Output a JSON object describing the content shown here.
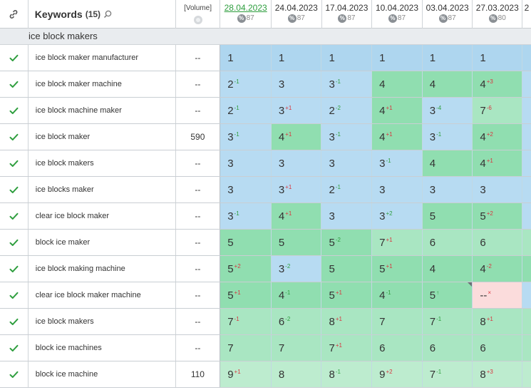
{
  "header": {
    "keywords_label": "Keywords",
    "keywords_count": "(15)",
    "volume_label": "[Volume]",
    "dates": [
      {
        "date": "28.04.2023",
        "score": "87"
      },
      {
        "date": "24.04.2023",
        "score": "87"
      },
      {
        "date": "17.04.2023",
        "score": "87"
      },
      {
        "date": "10.04.2023",
        "score": "87"
      },
      {
        "date": "03.04.2023",
        "score": "87"
      },
      {
        "date": "27.03.2023",
        "score": "80"
      },
      {
        "date": "2",
        "score": ""
      }
    ]
  },
  "group_title": "ice block makers",
  "colors": {
    "blue": "#aed6ef",
    "green": "#90deb0",
    "light_green": "#a9e6c2",
    "very_light_green": "#bdeccf",
    "pink": "#fbdcdc",
    "check": "#2e9e3e",
    "change_up": "#2e9e3e",
    "change_down": "#d9363e"
  },
  "rows": [
    {
      "keyword": "ice block maker manufacturer",
      "volume": "--",
      "cells": [
        {
          "pos": "1",
          "ch": "",
          "dir": "",
          "bg": "blue"
        },
        {
          "pos": "1",
          "ch": "",
          "dir": "",
          "bg": "blue"
        },
        {
          "pos": "1",
          "ch": "",
          "dir": "",
          "bg": "blue"
        },
        {
          "pos": "1",
          "ch": "",
          "dir": "",
          "bg": "blue"
        },
        {
          "pos": "1",
          "ch": "",
          "dir": "",
          "bg": "blue"
        },
        {
          "pos": "1",
          "ch": "",
          "dir": "",
          "bg": "blue"
        },
        {
          "pos": "",
          "ch": "",
          "dir": "",
          "bg": "blue"
        }
      ]
    },
    {
      "keyword": "ice block maker machine",
      "volume": "--",
      "cells": [
        {
          "pos": "2",
          "ch": "-1",
          "dir": "up",
          "bg": "blue2"
        },
        {
          "pos": "3",
          "ch": "",
          "dir": "",
          "bg": "blue2"
        },
        {
          "pos": "3",
          "ch": "-1",
          "dir": "up",
          "bg": "blue2"
        },
        {
          "pos": "4",
          "ch": "",
          "dir": "",
          "bg": "green"
        },
        {
          "pos": "4",
          "ch": "",
          "dir": "",
          "bg": "green"
        },
        {
          "pos": "4",
          "ch": "+3",
          "dir": "down",
          "bg": "green"
        },
        {
          "pos": "",
          "ch": "",
          "dir": "",
          "bg": "blue2"
        }
      ]
    },
    {
      "keyword": "ice block machine maker",
      "volume": "--",
      "cells": [
        {
          "pos": "2",
          "ch": "-1",
          "dir": "up",
          "bg": "blue2"
        },
        {
          "pos": "3",
          "ch": "+1",
          "dir": "down",
          "bg": "blue2"
        },
        {
          "pos": "2",
          "ch": "-2",
          "dir": "up",
          "bg": "blue2"
        },
        {
          "pos": "4",
          "ch": "+1",
          "dir": "down",
          "bg": "green"
        },
        {
          "pos": "3",
          "ch": "-4",
          "dir": "up",
          "bg": "blue2"
        },
        {
          "pos": "7",
          "ch": "-6",
          "dir": "down",
          "bg": "lgreen"
        },
        {
          "pos": "",
          "ch": "",
          "dir": "",
          "bg": "blue2"
        }
      ]
    },
    {
      "keyword": "ice block maker",
      "volume": "590",
      "cells": [
        {
          "pos": "3",
          "ch": "-1",
          "dir": "up",
          "bg": "blue2"
        },
        {
          "pos": "4",
          "ch": "+1",
          "dir": "down",
          "bg": "green"
        },
        {
          "pos": "3",
          "ch": "-1",
          "dir": "up",
          "bg": "blue2"
        },
        {
          "pos": "4",
          "ch": "+1",
          "dir": "down",
          "bg": "green"
        },
        {
          "pos": "3",
          "ch": "-1",
          "dir": "up",
          "bg": "blue2"
        },
        {
          "pos": "4",
          "ch": "+2",
          "dir": "down",
          "bg": "green"
        },
        {
          "pos": "",
          "ch": "",
          "dir": "",
          "bg": "blue2"
        }
      ]
    },
    {
      "keyword": "ice block makers",
      "volume": "--",
      "cells": [
        {
          "pos": "3",
          "ch": "",
          "dir": "",
          "bg": "blue2"
        },
        {
          "pos": "3",
          "ch": "",
          "dir": "",
          "bg": "blue2"
        },
        {
          "pos": "3",
          "ch": "",
          "dir": "",
          "bg": "blue2"
        },
        {
          "pos": "3",
          "ch": "-1",
          "dir": "up",
          "bg": "blue2"
        },
        {
          "pos": "4",
          "ch": "",
          "dir": "",
          "bg": "green"
        },
        {
          "pos": "4",
          "ch": "+1",
          "dir": "down",
          "bg": "green"
        },
        {
          "pos": "",
          "ch": "",
          "dir": "",
          "bg": "blue2"
        }
      ]
    },
    {
      "keyword": "ice blocks maker",
      "volume": "--",
      "cells": [
        {
          "pos": "3",
          "ch": "",
          "dir": "",
          "bg": "blue2"
        },
        {
          "pos": "3",
          "ch": "+1",
          "dir": "down",
          "bg": "blue2"
        },
        {
          "pos": "2",
          "ch": "-1",
          "dir": "up",
          "bg": "blue2"
        },
        {
          "pos": "3",
          "ch": "",
          "dir": "",
          "bg": "blue2"
        },
        {
          "pos": "3",
          "ch": "",
          "dir": "",
          "bg": "blue2"
        },
        {
          "pos": "3",
          "ch": "",
          "dir": "",
          "bg": "blue2"
        },
        {
          "pos": "",
          "ch": "",
          "dir": "",
          "bg": "blue2"
        }
      ]
    },
    {
      "keyword": "clear ice block maker",
      "volume": "--",
      "cells": [
        {
          "pos": "3",
          "ch": "-1",
          "dir": "up",
          "bg": "blue2"
        },
        {
          "pos": "4",
          "ch": "+1",
          "dir": "down",
          "bg": "green"
        },
        {
          "pos": "3",
          "ch": "",
          "dir": "",
          "bg": "blue2"
        },
        {
          "pos": "3",
          "ch": "+2",
          "dir": "up",
          "bg": "blue2"
        },
        {
          "pos": "5",
          "ch": "",
          "dir": "",
          "bg": "green"
        },
        {
          "pos": "5",
          "ch": "+2",
          "dir": "down",
          "bg": "green"
        },
        {
          "pos": "",
          "ch": "",
          "dir": "",
          "bg": "blue2"
        }
      ]
    },
    {
      "keyword": "block ice maker",
      "volume": "--",
      "cells": [
        {
          "pos": "5",
          "ch": "",
          "dir": "",
          "bg": "green"
        },
        {
          "pos": "5",
          "ch": "",
          "dir": "",
          "bg": "green"
        },
        {
          "pos": "5",
          "ch": "-2",
          "dir": "up",
          "bg": "green"
        },
        {
          "pos": "7",
          "ch": "+1",
          "dir": "down",
          "bg": "lgreen"
        },
        {
          "pos": "6",
          "ch": "",
          "dir": "",
          "bg": "lgreen"
        },
        {
          "pos": "6",
          "ch": "",
          "dir": "",
          "bg": "lgreen"
        },
        {
          "pos": "",
          "ch": "",
          "dir": "",
          "bg": "lgreen"
        }
      ]
    },
    {
      "keyword": "ice block making machine",
      "volume": "--",
      "cells": [
        {
          "pos": "5",
          "ch": "+2",
          "dir": "down",
          "bg": "green"
        },
        {
          "pos": "3",
          "ch": "-2",
          "dir": "up",
          "bg": "blue2"
        },
        {
          "pos": "5",
          "ch": "",
          "dir": "",
          "bg": "green"
        },
        {
          "pos": "5",
          "ch": "+1",
          "dir": "down",
          "bg": "green"
        },
        {
          "pos": "4",
          "ch": "",
          "dir": "",
          "bg": "green"
        },
        {
          "pos": "4",
          "ch": "-2",
          "dir": "down",
          "bg": "green"
        },
        {
          "pos": "",
          "ch": "",
          "dir": "",
          "bg": "green"
        }
      ]
    },
    {
      "keyword": "clear ice block maker machine",
      "volume": "--",
      "cells": [
        {
          "pos": "5",
          "ch": "+1",
          "dir": "down",
          "bg": "green"
        },
        {
          "pos": "4",
          "ch": "-1",
          "dir": "up",
          "bg": "green"
        },
        {
          "pos": "5",
          "ch": "+1",
          "dir": "down",
          "bg": "green"
        },
        {
          "pos": "4",
          "ch": "-1",
          "dir": "up",
          "bg": "green"
        },
        {
          "pos": "5",
          "ch": "↑",
          "dir": "up",
          "bg": "green",
          "tri": true
        },
        {
          "pos": "--",
          "ch": "×",
          "dir": "down",
          "bg": "pink"
        },
        {
          "pos": "",
          "ch": "",
          "dir": "",
          "bg": "blue2"
        }
      ]
    },
    {
      "keyword": "ice block makers",
      "volume": "--",
      "cells": [
        {
          "pos": "7",
          "ch": "-1",
          "dir": "down",
          "bg": "lgreen"
        },
        {
          "pos": "6",
          "ch": "-2",
          "dir": "up",
          "bg": "lgreen"
        },
        {
          "pos": "8",
          "ch": "+1",
          "dir": "down",
          "bg": "lgreen"
        },
        {
          "pos": "7",
          "ch": "",
          "dir": "",
          "bg": "lgreen"
        },
        {
          "pos": "7",
          "ch": "-1",
          "dir": "up",
          "bg": "lgreen"
        },
        {
          "pos": "8",
          "ch": "+1",
          "dir": "down",
          "bg": "lgreen"
        },
        {
          "pos": "",
          "ch": "",
          "dir": "",
          "bg": "lgreen"
        }
      ]
    },
    {
      "keyword": "block ice machines",
      "volume": "--",
      "cells": [
        {
          "pos": "7",
          "ch": "",
          "dir": "",
          "bg": "lgreen"
        },
        {
          "pos": "7",
          "ch": "",
          "dir": "",
          "bg": "lgreen"
        },
        {
          "pos": "7",
          "ch": "+1",
          "dir": "down",
          "bg": "lgreen"
        },
        {
          "pos": "6",
          "ch": "",
          "dir": "",
          "bg": "lgreen"
        },
        {
          "pos": "6",
          "ch": "",
          "dir": "",
          "bg": "lgreen"
        },
        {
          "pos": "6",
          "ch": "",
          "dir": "",
          "bg": "lgreen"
        },
        {
          "pos": "",
          "ch": "",
          "dir": "",
          "bg": "lgreen"
        }
      ]
    },
    {
      "keyword": "block ice machine",
      "volume": "110",
      "cells": [
        {
          "pos": "9",
          "ch": "+1",
          "dir": "down",
          "bg": "vlgreen"
        },
        {
          "pos": "8",
          "ch": "",
          "dir": "",
          "bg": "vlgreen"
        },
        {
          "pos": "8",
          "ch": "-1",
          "dir": "up",
          "bg": "vlgreen"
        },
        {
          "pos": "9",
          "ch": "+2",
          "dir": "down",
          "bg": "vlgreen"
        },
        {
          "pos": "7",
          "ch": "-1",
          "dir": "up",
          "bg": "vlgreen"
        },
        {
          "pos": "8",
          "ch": "+3",
          "dir": "down",
          "bg": "vlgreen"
        },
        {
          "pos": "",
          "ch": "",
          "dir": "",
          "bg": "vlgreen"
        }
      ]
    }
  ]
}
